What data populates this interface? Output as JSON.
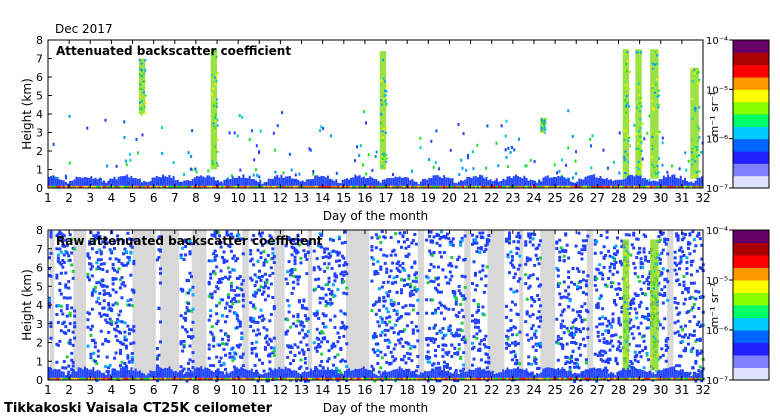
{
  "month_label": "Dec 2017",
  "footer_label": "Tikkakoski Vaisala CT25K ceilometer",
  "chart_data": [
    {
      "type": "heatmap",
      "title": "Attenuated backscatter coefficient",
      "xlabel": "Day of the month",
      "ylabel": "Height (km)",
      "xlim": [
        1,
        32
      ],
      "ylim": [
        0,
        8
      ],
      "xticks": [
        "1",
        "2",
        "3",
        "4",
        "5",
        "6",
        "7",
        "8",
        "9",
        "10",
        "11",
        "12",
        "13",
        "14",
        "15",
        "16",
        "17",
        "18",
        "19",
        "20",
        "21",
        "22",
        "23",
        "24",
        "25",
        "26",
        "27",
        "28",
        "29",
        "30",
        "31",
        "32"
      ],
      "yticks": [
        "0",
        "1",
        "2",
        "3",
        "4",
        "5",
        "6",
        "7",
        "8"
      ],
      "colorbar": {
        "unit": "m⁻¹ sr⁻¹",
        "scale": "log",
        "ticks": [
          "10⁻⁷",
          "10⁻⁶",
          "10⁻⁵",
          "10⁻⁴"
        ]
      },
      "cloud_layers": [
        {
          "day_start": 5.3,
          "day_end": 5.6,
          "base_km": 4.0,
          "top_km": 7.0
        },
        {
          "day_start": 8.7,
          "day_end": 9.0,
          "base_km": 1.0,
          "top_km": 7.5
        },
        {
          "day_start": 16.7,
          "day_end": 17.0,
          "base_km": 1.0,
          "top_km": 7.4
        },
        {
          "day_start": 24.3,
          "day_end": 24.5,
          "base_km": 3.0,
          "top_km": 3.8
        },
        {
          "day_start": 28.2,
          "day_end": 28.5,
          "base_km": 0.5,
          "top_km": 7.5
        },
        {
          "day_start": 28.8,
          "day_end": 29.1,
          "base_km": 0.5,
          "top_km": 7.5
        },
        {
          "day_start": 29.5,
          "day_end": 29.9,
          "base_km": 0.5,
          "top_km": 7.5
        },
        {
          "day_start": 31.4,
          "day_end": 31.8,
          "base_km": 0.5,
          "top_km": 6.5
        }
      ]
    },
    {
      "type": "heatmap",
      "title": "Raw attenuated backscatter coefficient",
      "xlabel": "Day of the month",
      "ylabel": "Height (km)",
      "xlim": [
        1,
        32
      ],
      "ylim": [
        0,
        8
      ],
      "xticks": [
        "1",
        "2",
        "3",
        "4",
        "5",
        "6",
        "7",
        "8",
        "9",
        "10",
        "11",
        "12",
        "13",
        "14",
        "15",
        "16",
        "17",
        "18",
        "19",
        "20",
        "21",
        "22",
        "23",
        "24",
        "25",
        "26",
        "27",
        "28",
        "29",
        "30",
        "31",
        "32"
      ],
      "yticks": [
        "0",
        "1",
        "2",
        "3",
        "4",
        "5",
        "6",
        "7",
        "8"
      ],
      "colorbar": {
        "unit": "m⁻¹ sr⁻¹",
        "scale": "log",
        "ticks": [
          "10⁻⁷",
          "10⁻⁶",
          "10⁻⁵",
          "10⁻⁴"
        ]
      },
      "cloud_layers": [
        {
          "day_start": 28.2,
          "day_end": 28.5,
          "base_km": 0.5,
          "top_km": 7.5
        },
        {
          "day_start": 29.5,
          "day_end": 29.9,
          "base_km": 0.5,
          "top_km": 7.5
        }
      ]
    }
  ]
}
